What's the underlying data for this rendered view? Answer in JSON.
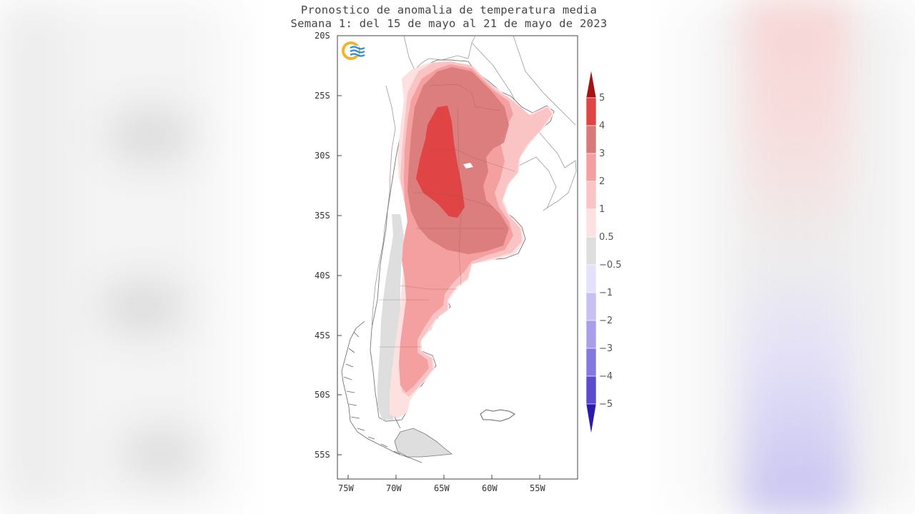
{
  "title": {
    "line1": "Pronostico de anomalia de temperatura media",
    "line2": "Semana 1: del 15 de mayo al 21 de mayo de 2023"
  },
  "y_axis_ticks": [
    "20S",
    "25S",
    "30S",
    "35S",
    "40S",
    "45S",
    "50S",
    "55S"
  ],
  "x_axis_ticks": [
    "75W",
    "70W",
    "65W",
    "60W",
    "55W"
  ],
  "legend": {
    "labels": [
      "5",
      "4",
      "3",
      "2",
      "1",
      "0.5",
      "−0.5",
      "−1",
      "−2",
      "−3",
      "−4",
      "−5"
    ],
    "colors": {
      "gt5": "#a31515",
      "4to5": "#e04444",
      "3to4": "#d97a7a",
      "2to3": "#f5a0a0",
      "1to2": "#fbc4c4",
      "05to1": "#fde0e0",
      "neutral": "#dedede",
      "m1to05": "#e4e2fb",
      "m2to1": "#c7c0f3",
      "m3to2": "#a89ee9",
      "m4to3": "#8478de",
      "m5to4": "#5a4bd0",
      "lt5": "#2a1ab0"
    }
  },
  "logo": "smn-logo-icon"
}
